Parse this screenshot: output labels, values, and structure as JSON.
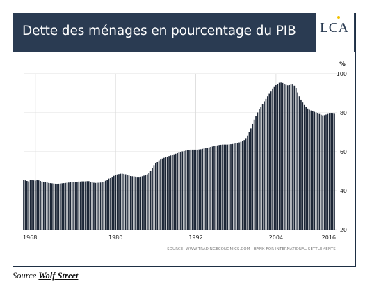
{
  "header": {
    "title": "Dette des ménages en pourcentage du PIB",
    "logo": "LCA"
  },
  "chart_data": {
    "type": "bar",
    "title": "Dette des ménages en pourcentage du PIB",
    "ylabel": "%",
    "ylim": [
      20,
      100
    ],
    "yticks": [
      20,
      40,
      60,
      80,
      100
    ],
    "xticks": [
      "1968",
      "1980",
      "1992",
      "2004",
      "2016"
    ],
    "grid": true,
    "source": "SOURCE: WWW.TRADINGECONOMICS.COM | BANK FOR INTERNATIONAL SETTLEMENTS",
    "x_start": 1966.25,
    "step_years": 0.25,
    "values": [
      45.5,
      45.3,
      45.0,
      44.8,
      45.4,
      45.5,
      45.3,
      45.2,
      45.6,
      45.3,
      45.0,
      44.7,
      44.5,
      44.3,
      44.2,
      44.0,
      43.9,
      43.8,
      43.7,
      43.6,
      43.5,
      43.6,
      43.7,
      43.8,
      43.9,
      44.0,
      44.1,
      44.2,
      44.3,
      44.4,
      44.5,
      44.6,
      44.6,
      44.7,
      44.7,
      44.8,
      44.8,
      44.8,
      44.9,
      44.9,
      44.5,
      44.3,
      44.1,
      44.0,
      44.1,
      44.1,
      44.2,
      44.3,
      44.6,
      45.1,
      45.6,
      46.2,
      46.7,
      47.1,
      47.6,
      48.0,
      48.3,
      48.5,
      48.7,
      48.7,
      48.6,
      48.4,
      48.1,
      47.8,
      47.5,
      47.4,
      47.3,
      47.2,
      47.1,
      47.1,
      47.2,
      47.4,
      47.7,
      48.0,
      48.4,
      49.0,
      50.0,
      51.5,
      53.1,
      54.3,
      55.0,
      55.5,
      56.0,
      56.5,
      56.9,
      57.2,
      57.5,
      57.8,
      58.1,
      58.4,
      58.7,
      59.0,
      59.3,
      59.6,
      59.9,
      60.2,
      60.4,
      60.6,
      60.8,
      61.0,
      61.1,
      61.1,
      61.1,
      61.1,
      61.1,
      61.2,
      61.3,
      61.5,
      61.7,
      61.9,
      62.1,
      62.3,
      62.5,
      62.7,
      62.9,
      63.1,
      63.3,
      63.5,
      63.6,
      63.7,
      63.7,
      63.7,
      63.7,
      63.8,
      63.9,
      64.0,
      64.2,
      64.4,
      64.6,
      64.8,
      65.1,
      65.5,
      66.0,
      67.0,
      68.3,
      70.0,
      72.0,
      74.3,
      76.5,
      78.5,
      80.2,
      81.8,
      83.2,
      84.6,
      85.9,
      87.2,
      88.5,
      89.8,
      91.0,
      92.2,
      93.3,
      94.3,
      95.0,
      95.5,
      95.6,
      95.4,
      95.0,
      94.5,
      94.2,
      94.3,
      94.6,
      94.6,
      94.0,
      92.5,
      90.5,
      88.5,
      86.8,
      85.3,
      84.0,
      83.0,
      82.2,
      81.6,
      81.2,
      80.8,
      80.5,
      80.2,
      79.8,
      79.4,
      79.0,
      78.7,
      78.8,
      79.1,
      79.4,
      79.6,
      79.7,
      79.6,
      79.5
    ]
  },
  "footer": {
    "source_prefix": "Source",
    "source_link": "Wolf Street"
  }
}
